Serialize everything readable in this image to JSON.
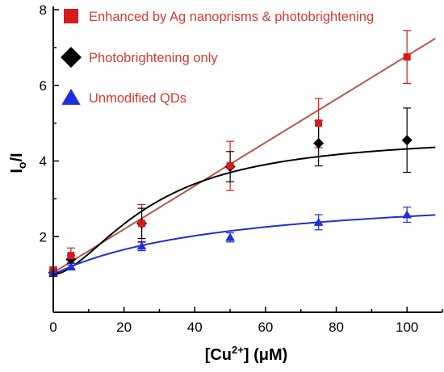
{
  "chart_data": {
    "type": "scatter",
    "xlabel": "[Cu2+] (μM)",
    "ylabel": "Io/I",
    "xlim": [
      0,
      110
    ],
    "ylim": [
      0,
      8
    ],
    "x_ticks": [
      0,
      20,
      40,
      60,
      80,
      100
    ],
    "y_ticks": [
      2,
      4,
      6,
      8
    ],
    "grid": false,
    "legend_position": "top-left",
    "text_color": "#d43a2f",
    "series": [
      {
        "name": "Enhanced by Ag nanoprisms & photobrightening",
        "marker": "square",
        "color": "#d71a1a",
        "fit_color": "#b5584a",
        "x": [
          0,
          5,
          25,
          50,
          75,
          100
        ],
        "y": [
          1.1,
          1.5,
          2.35,
          3.87,
          5.0,
          6.75
        ],
        "error": [
          0.1,
          0.2,
          0.5,
          0.65,
          0.65,
          0.7
        ],
        "fit": {
          "kind": "linear",
          "intercept": 1.05,
          "slope": 0.0573,
          "x_range": [
            0,
            108
          ]
        }
      },
      {
        "name": "Photobrightening only",
        "marker": "diamond",
        "color": "#000000",
        "fit_color": "#000000",
        "x": [
          0,
          5,
          25,
          50,
          75,
          100
        ],
        "y": [
          1.05,
          1.4,
          2.35,
          3.85,
          4.47,
          4.55
        ],
        "error": [
          0.1,
          0.1,
          0.4,
          0.4,
          0.6,
          0.85
        ],
        "fit": {
          "kind": "sigmoid",
          "base": 1.0,
          "amplitude": 3.7,
          "x_half": 28,
          "power": 1.7,
          "x_range": [
            0,
            108
          ]
        }
      },
      {
        "name": "Unmodified QDs",
        "marker": "triangle",
        "color": "#1e2ee0",
        "fit_color": "#1e2ee0",
        "x": [
          0,
          5,
          25,
          50,
          75,
          100
        ],
        "y": [
          1.05,
          1.2,
          1.75,
          1.98,
          2.38,
          2.58
        ],
        "error": [
          0.05,
          0.05,
          0.12,
          0.12,
          0.2,
          0.2
        ],
        "fit": {
          "kind": "saturation",
          "base": 1.0,
          "amplitude": 2.3,
          "k": 50,
          "x_range": [
            0,
            108
          ]
        }
      }
    ]
  }
}
